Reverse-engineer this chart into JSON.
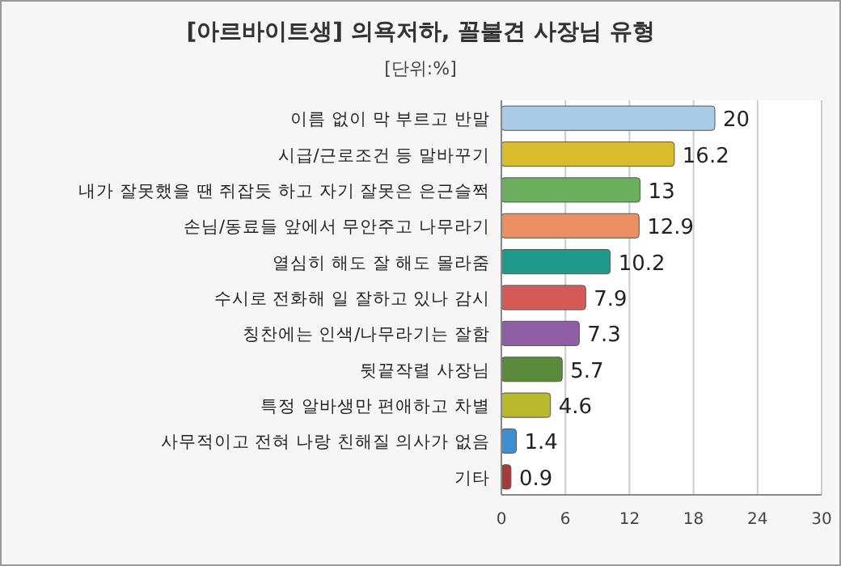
{
  "chart_data": {
    "type": "bar",
    "orientation": "horizontal",
    "title": "[아르바이트생] 의욕저하, 꼴불견 사장님 유형",
    "subtitle": "[단위:%]",
    "categories": [
      "이름 없이 막 부르고 반말",
      "시급/근로조건 등 말바꾸기",
      "내가 잘못했을 땐 쥐잡듯 하고 자기 잘못은 은근슬쩍",
      "손님/동료들 앞에서 무안주고 나무라기",
      "열심히 해도 잘 해도 몰라줌",
      "수시로 전화해 일 잘하고 있나 감시",
      "칭찬에는 인색/나무라기는 잘함",
      "뒷끝작렬 사장님",
      "특정 알바생만 편애하고 차별",
      "사무적이고 전혀 나랑 친해질 의사가 없음",
      "기타"
    ],
    "values": [
      20,
      16.2,
      13,
      12.9,
      10.2,
      7.9,
      7.3,
      5.7,
      4.6,
      1.4,
      0.9
    ],
    "colors": [
      "#a9cbe8",
      "#d8bc2c",
      "#6aae5e",
      "#ec8f62",
      "#1f9a8a",
      "#d65a58",
      "#8f5da3",
      "#5c8a3c",
      "#b9b92e",
      "#3b8fd2",
      "#a83a3a"
    ],
    "xlim": [
      0,
      30
    ],
    "xticks": [
      0,
      6,
      12,
      18,
      24,
      30
    ],
    "grid": "x",
    "data_labels": true
  }
}
